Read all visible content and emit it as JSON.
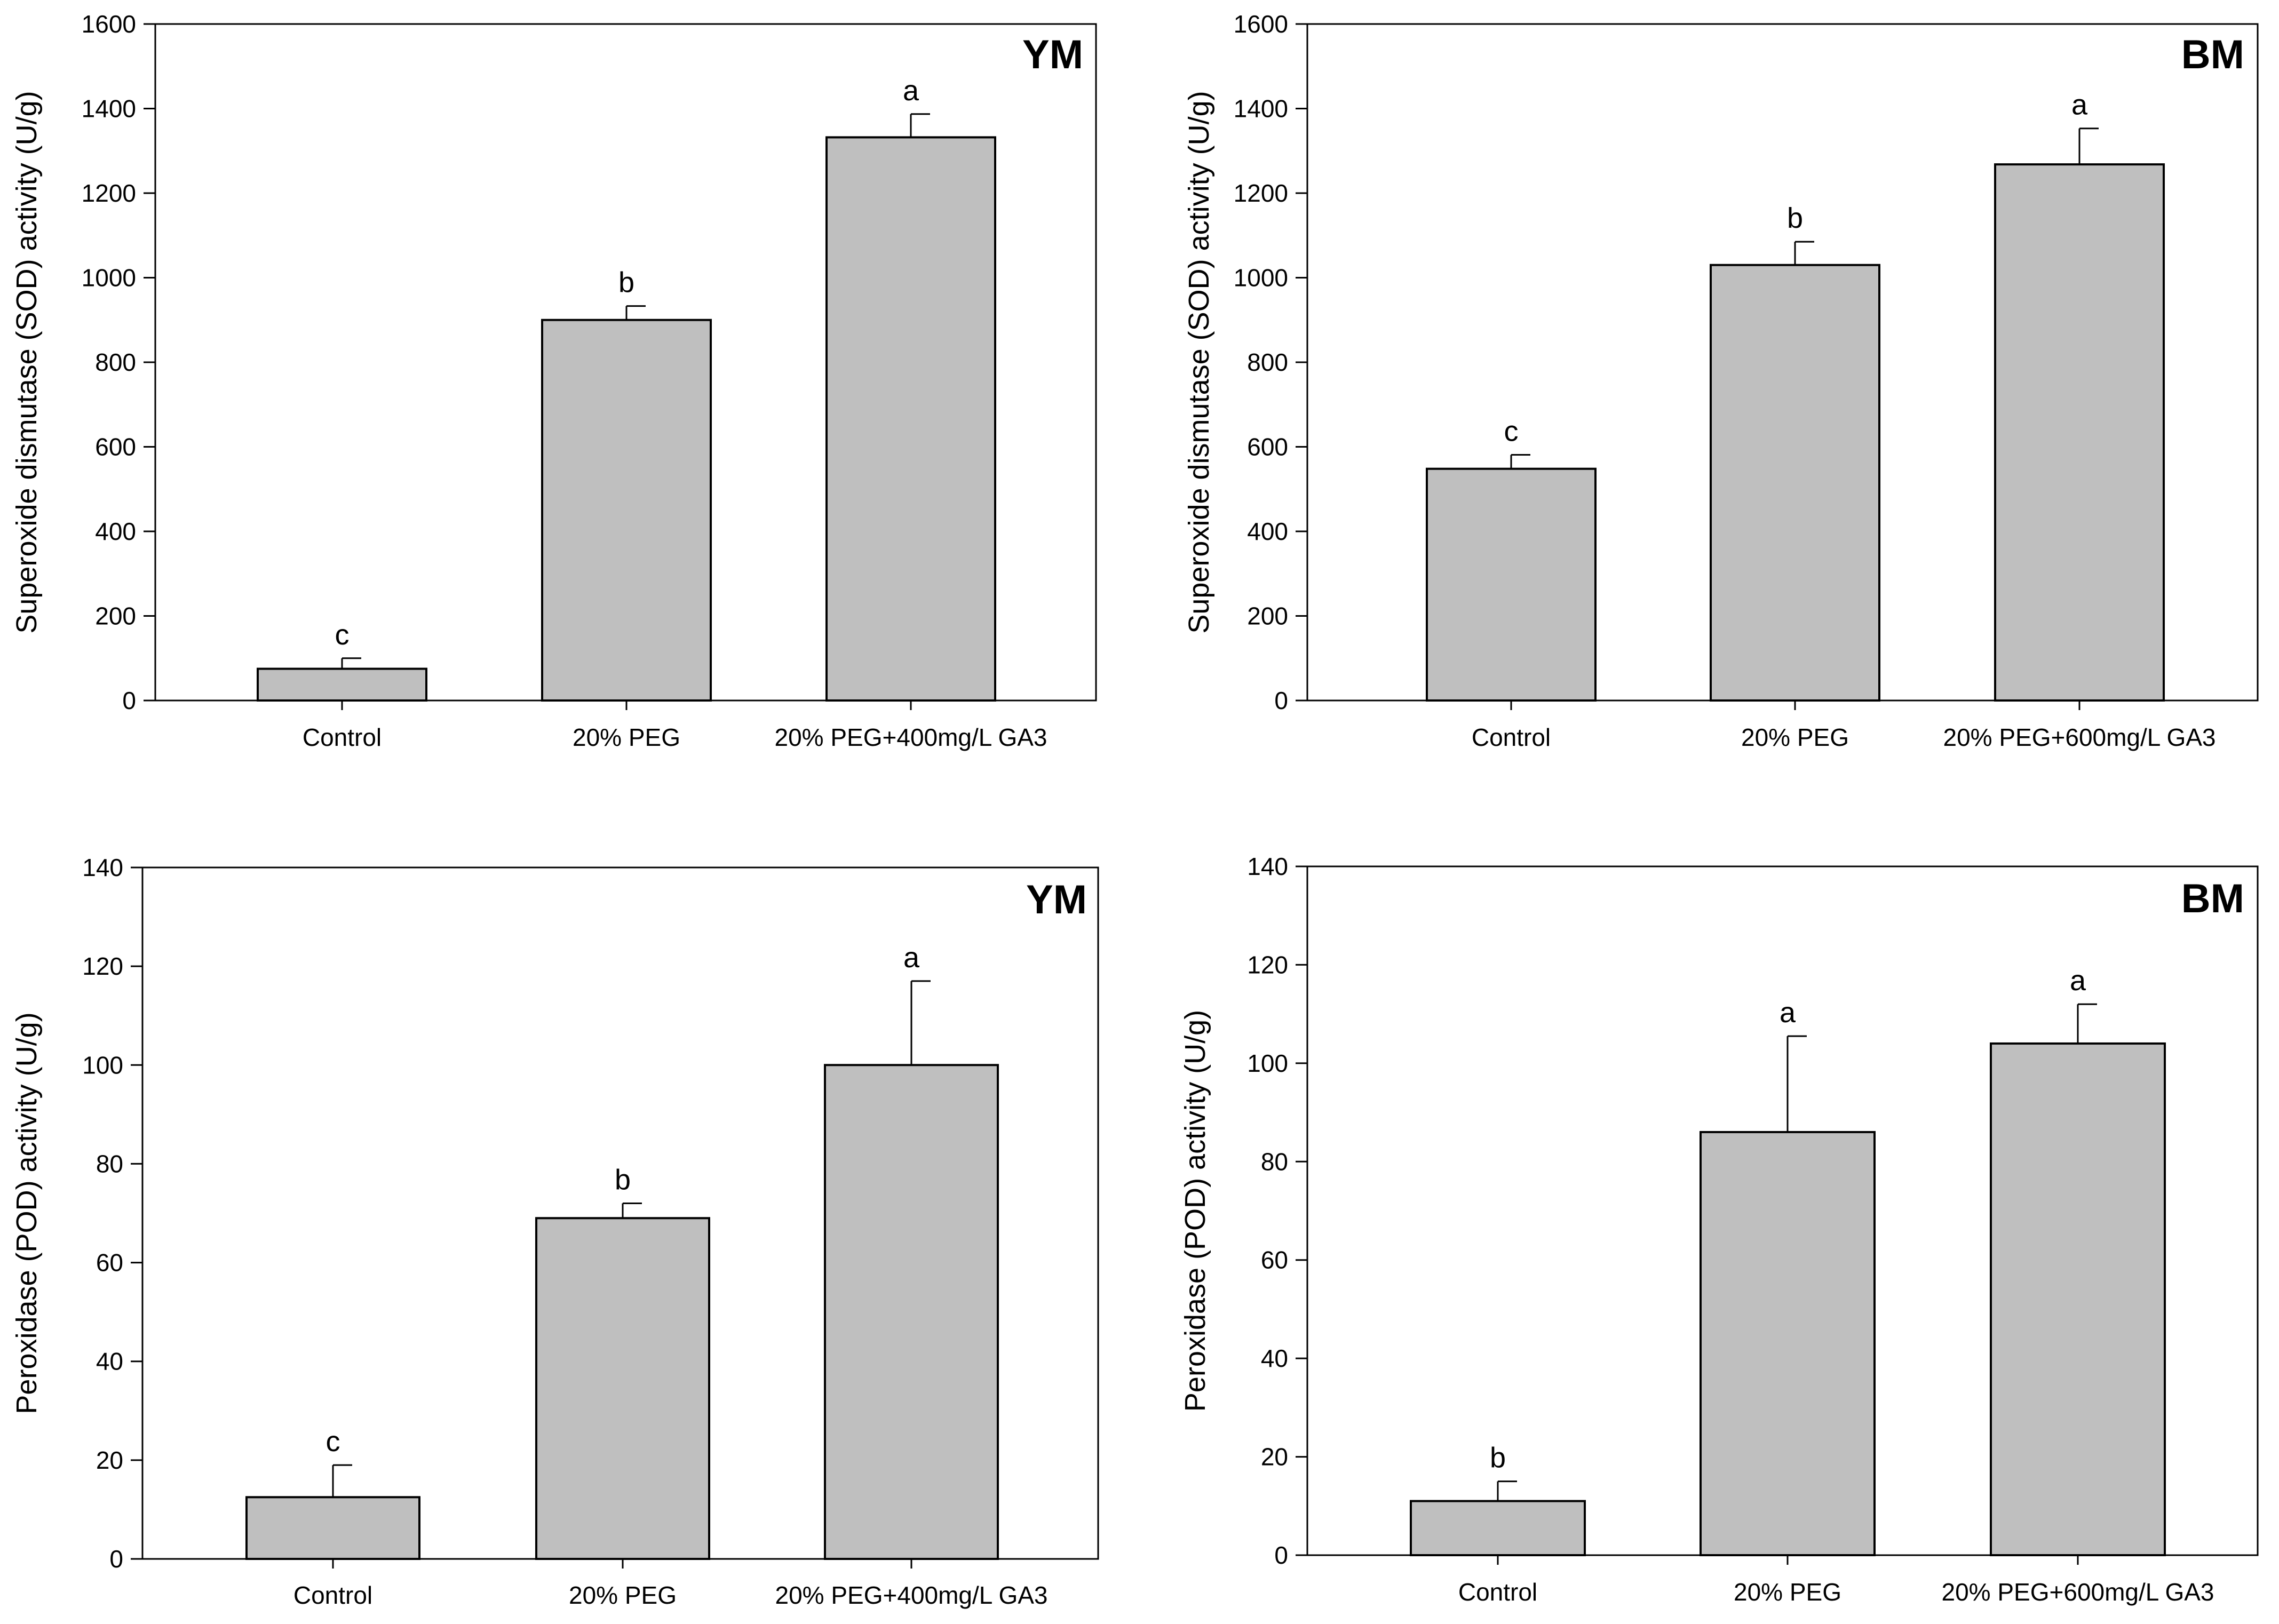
{
  "colors": {
    "bar_fill": "#bfbfbf",
    "bar_stroke": "#000000",
    "axis": "#000000",
    "background": "#ffffff"
  },
  "chart_data": [
    {
      "type": "bar",
      "panel": "YM",
      "title": "",
      "xlabel": "",
      "ylabel": "Superoxide dismutase (SOD) activity (U/g)",
      "ylim": [
        0,
        1600
      ],
      "yticks": [
        0,
        200,
        400,
        600,
        800,
        1000,
        1200,
        1400,
        1600
      ],
      "tick_labels": [
        "0",
        "200",
        "400",
        "600",
        "800",
        "1000",
        "1200",
        "1400",
        "1600"
      ],
      "categories": [
        "Control",
        "20% PEG",
        "20% PEG+400mg/L GA3"
      ],
      "values": [
        75,
        900,
        1332
      ],
      "errors": [
        25,
        33,
        55
      ],
      "significance": [
        "c",
        "b",
        "a"
      ],
      "grid": false,
      "legend": "none"
    },
    {
      "type": "bar",
      "panel": "BM",
      "title": "",
      "xlabel": "",
      "ylabel": "Superoxide dismutase (SOD) activity (U/g)",
      "ylim": [
        0,
        1600
      ],
      "yticks": [
        0,
        200,
        400,
        600,
        800,
        1000,
        1200,
        1400,
        1600
      ],
      "tick_labels": [
        "0",
        "200",
        "400",
        "600",
        "800",
        "1000",
        "1200",
        "1400",
        "1600"
      ],
      "categories": [
        "Control",
        "20% PEG",
        "20% PEG+600mg/L GA3"
      ],
      "values": [
        548,
        1030,
        1268
      ],
      "errors": [
        33,
        55,
        85
      ],
      "significance": [
        "c",
        "b",
        "a"
      ],
      "grid": false,
      "legend": "none"
    },
    {
      "type": "bar",
      "panel": "YM",
      "title": "",
      "xlabel": "",
      "ylabel": "Peroxidase (POD) activity (U/g)",
      "ylim": [
        0,
        140
      ],
      "yticks": [
        0,
        20,
        40,
        60,
        80,
        100,
        120,
        140
      ],
      "tick_labels": [
        "0",
        "20",
        "40",
        "60",
        "80",
        "100",
        "120",
        "140"
      ],
      "categories": [
        "Control",
        "20% PEG",
        "20% PEG+400mg/L GA3"
      ],
      "values": [
        12.5,
        69,
        100
      ],
      "errors": [
        6.5,
        3,
        17
      ],
      "significance": [
        "c",
        "b",
        "a"
      ],
      "grid": false,
      "legend": "none"
    },
    {
      "type": "bar",
      "panel": "BM",
      "title": "",
      "xlabel": "",
      "ylabel": "Peroxidase (POD) activity (U/g)",
      "ylim": [
        0,
        140
      ],
      "yticks": [
        0,
        20,
        40,
        60,
        80,
        100,
        120,
        140
      ],
      "tick_labels": [
        "0",
        "20",
        "40",
        "60",
        "80",
        "100",
        "120",
        "140"
      ],
      "categories": [
        "Control",
        "20% PEG",
        "20% PEG+600mg/L GA3"
      ],
      "values": [
        11,
        86,
        104
      ],
      "errors": [
        4,
        19.5,
        8
      ],
      "significance": [
        "b",
        "a",
        "a"
      ],
      "grid": false,
      "legend": "none"
    }
  ]
}
